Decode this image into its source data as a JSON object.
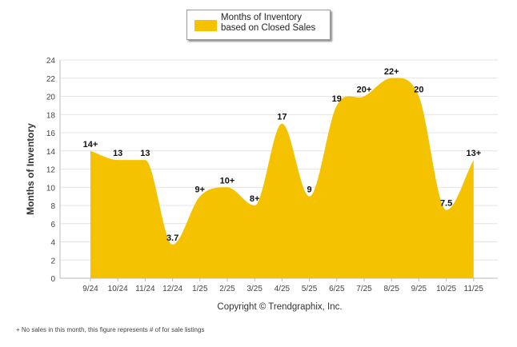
{
  "chart_data": {
    "type": "area",
    "title": "",
    "legend": {
      "label": "Months of Inventory based on Closed Sales",
      "color": "#f5c200",
      "placement": "top-center"
    },
    "xlabel": "Copyright © Trendgraphix, Inc.",
    "ylabel": "Months of Inventory",
    "ylim": [
      0,
      24
    ],
    "yticks": [
      "0",
      "2",
      "4",
      "6",
      "8",
      "10",
      "12",
      "14",
      "16",
      "18",
      "20",
      "22",
      "24"
    ],
    "grid": true,
    "categories": [
      "9/24",
      "10/24",
      "11/24",
      "12/24",
      "1/25",
      "2/25",
      "3/25",
      "4/25",
      "5/25",
      "6/25",
      "7/25",
      "8/25",
      "9/25",
      "10/25",
      "11/25"
    ],
    "series": [
      {
        "name": "Months of Inventory based on Closed Sales",
        "values": [
          14,
          13,
          13,
          3.7,
          9,
          10,
          8,
          17,
          9,
          19,
          20,
          22,
          20,
          7.5,
          13
        ],
        "labels": [
          "14+",
          "13",
          "13",
          "3.7",
          "9+",
          "10+",
          "8+",
          "17",
          "9",
          "19",
          "20+",
          "22+",
          "20",
          "7.5",
          "13+"
        ],
        "color": "#f5c200"
      }
    ],
    "footnote": "+  No sales in this month, this figure represents # of for sale listings"
  }
}
